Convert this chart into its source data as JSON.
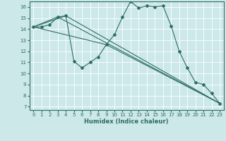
{
  "xlabel": "Humidex (Indice chaleur)",
  "xlim": [
    -0.5,
    23.5
  ],
  "ylim": [
    6.7,
    16.5
  ],
  "yticks": [
    7,
    8,
    9,
    10,
    11,
    12,
    13,
    14,
    15,
    16
  ],
  "xticks": [
    0,
    1,
    2,
    3,
    4,
    5,
    6,
    7,
    8,
    9,
    10,
    11,
    12,
    13,
    14,
    15,
    16,
    17,
    18,
    19,
    20,
    21,
    22,
    23
  ],
  "bg_color": "#cce8e8",
  "line_color": "#2e6e64",
  "grid_color": "#ffffff",
  "line1_x": [
    0,
    1,
    2,
    3,
    4,
    5,
    6,
    7,
    8,
    9,
    10,
    11,
    12,
    13,
    14,
    15,
    16,
    17,
    18,
    19,
    20,
    21,
    22,
    23
  ],
  "line1_y": [
    14.2,
    14.2,
    14.4,
    15.1,
    15.2,
    11.1,
    10.5,
    11.0,
    11.5,
    12.6,
    13.5,
    15.1,
    16.5,
    15.9,
    16.1,
    16.0,
    16.1,
    14.3,
    12.0,
    10.5,
    9.2,
    9.0,
    8.2,
    7.3
  ],
  "line2_x": [
    0,
    3,
    23
  ],
  "line2_y": [
    14.2,
    15.1,
    7.3
  ],
  "line3_x": [
    0,
    4,
    23
  ],
  "line3_y": [
    14.2,
    15.2,
    7.3
  ],
  "line4_x": [
    0,
    9,
    23
  ],
  "line4_y": [
    14.2,
    12.6,
    7.3
  ],
  "tick_fontsize": 5.0,
  "xlabel_fontsize": 6.0
}
